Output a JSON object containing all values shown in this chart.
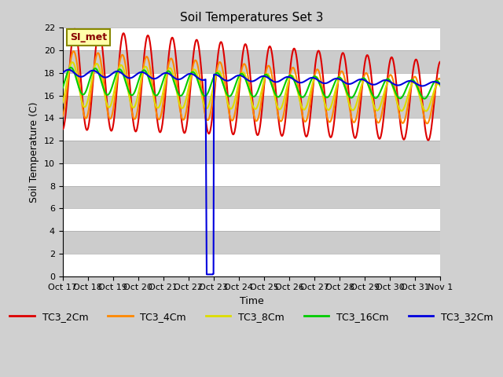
{
  "title": "Soil Temperatures Set 3",
  "xlabel": "Time",
  "ylabel": "Soil Temperature (C)",
  "ylim": [
    0,
    22
  ],
  "xlim": [
    0,
    15.5
  ],
  "background_color": "#e8e8e8",
  "plot_bg": "#e8e8e8",
  "band_colors": [
    "#ffffff",
    "#e0e0e0"
  ],
  "yticks": [
    0,
    2,
    4,
    6,
    8,
    10,
    12,
    14,
    16,
    18,
    20,
    22
  ],
  "xtick_labels": [
    "Oct 17",
    "Oct 18",
    "Oct 19",
    "Oct 20",
    "Oct 21",
    "Oct 22",
    "Oct 23",
    "Oct 24",
    "Oct 25",
    "Oct 26",
    "Oct 27",
    "Oct 28",
    "Oct 29",
    "Oct 30",
    "Oct 31",
    "Nov 1"
  ],
  "series_colors": {
    "TC3_2Cm": "#dd0000",
    "TC3_4Cm": "#ff8800",
    "TC3_8Cm": "#dddd00",
    "TC3_16Cm": "#00cc00",
    "TC3_32Cm": "#0000dd"
  },
  "legend_labels": [
    "TC3_2Cm",
    "TC3_4Cm",
    "TC3_8Cm",
    "TC3_16Cm",
    "TC3_32Cm"
  ],
  "si_met_label": "SI_met",
  "si_met_bg": "#ffffaa",
  "si_met_border": "#888800"
}
